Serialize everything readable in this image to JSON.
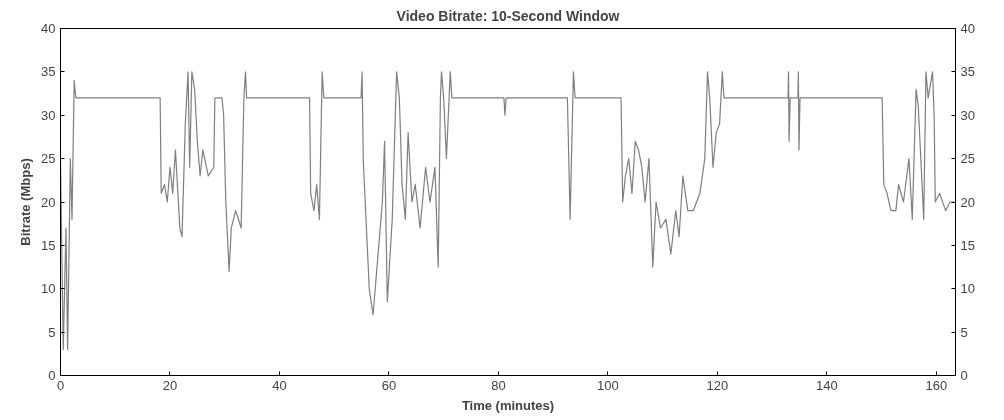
{
  "chart_data": {
    "type": "line",
    "title": "Video Bitrate: 10-Second Window",
    "xlabel": "Time (minutes)",
    "ylabel": "Bitrate (Mbps)",
    "xlim": [
      0,
      163.5
    ],
    "xticks": [
      0,
      20,
      40,
      60,
      80,
      100,
      120,
      140,
      160
    ],
    "ylim": [
      0,
      40
    ],
    "yticks": [
      0,
      5,
      10,
      15,
      20,
      25,
      30,
      35,
      40
    ],
    "y2lim": [
      0,
      40
    ],
    "y2ticks": [
      0,
      5,
      10,
      15,
      20,
      25,
      30,
      35,
      40
    ],
    "grid": false,
    "marker": "none",
    "line_style": "solid",
    "series": [
      {
        "color": "#7f7f7f",
        "x": [
          0,
          0.5,
          1,
          1.3,
          1.8,
          2.1,
          2.5,
          2.8,
          3,
          10,
          18.2,
          18.4,
          19,
          19.5,
          20,
          20.5,
          21,
          21.8,
          22.2,
          22.8,
          23.3,
          23.6,
          24,
          24.5,
          25,
          25.5,
          26,
          27,
          28,
          28.2,
          29.5,
          29.8,
          30.2,
          30.8,
          31.2,
          32,
          33,
          33.5,
          33.8,
          34,
          40,
          45.5,
          45.7,
          46.3,
          46.8,
          47.3,
          47.8,
          48.1,
          52,
          54.9,
          55.1,
          55.3,
          56.4,
          57.1,
          58.8,
          59.2,
          59.7,
          60.6,
          61.4,
          61.9,
          62.4,
          63,
          63.5,
          64.2,
          64.8,
          65.7,
          66.7,
          67.5,
          68.4,
          69,
          69.4,
          69.6,
          70,
          70.5,
          71.2,
          71.5,
          76,
          81,
          81.2,
          81.4,
          86,
          92.6,
          93.1,
          93.7,
          94,
          100,
          102.4,
          102.7,
          103.2,
          103.8,
          104.4,
          105,
          105.6,
          106.2,
          106.8,
          107.5,
          108.2,
          108.8,
          109.6,
          110.6,
          111.5,
          112.4,
          113,
          113.7,
          114.6,
          115.6,
          116.8,
          117.7,
          118.2,
          118.6,
          119.2,
          119.8,
          120.4,
          120.9,
          121.2,
          127,
          132.9,
          133,
          133.1,
          133.3,
          134.7,
          134.8,
          134.9,
          135.1,
          142,
          150.1,
          150.4,
          151,
          151.7,
          152.6,
          153.1,
          154,
          155,
          155.6,
          156.3,
          156.7,
          157.7,
          158.1,
          158.5,
          159.3,
          159.6,
          159.8,
          160.6,
          161.7,
          162.5,
          163.2
        ],
        "values": [
          25,
          3,
          17,
          3,
          25,
          18,
          34,
          32,
          32,
          32,
          32,
          21,
          22,
          20,
          24,
          21,
          26,
          17,
          16,
          29,
          35,
          24,
          35,
          33,
          27,
          23,
          26,
          23,
          24,
          32,
          32,
          30,
          20,
          12,
          17,
          19,
          17,
          32,
          35,
          32,
          32,
          32,
          21,
          19,
          22,
          18,
          35,
          32,
          32,
          32,
          35,
          25,
          10,
          7,
          20,
          27,
          8.5,
          18,
          35,
          32,
          22,
          18,
          28,
          20,
          22,
          17,
          24,
          20,
          24,
          12.5,
          32,
          35,
          32,
          25,
          35,
          32,
          32,
          32,
          30,
          32,
          32,
          32,
          18,
          35,
          32,
          32,
          32,
          20,
          23,
          25,
          21,
          27,
          26,
          24,
          20,
          25,
          12.5,
          20,
          17,
          18,
          14,
          19,
          16,
          23,
          19,
          19,
          21,
          25,
          35,
          32,
          24,
          28,
          29,
          35,
          32,
          32,
          32,
          35,
          27,
          32,
          32,
          35,
          26,
          32,
          32,
          32,
          22,
          21,
          19,
          19,
          22,
          20,
          25,
          18,
          33,
          31,
          18,
          35,
          32,
          35,
          30,
          20,
          21,
          19,
          20,
          20
        ]
      }
    ]
  }
}
